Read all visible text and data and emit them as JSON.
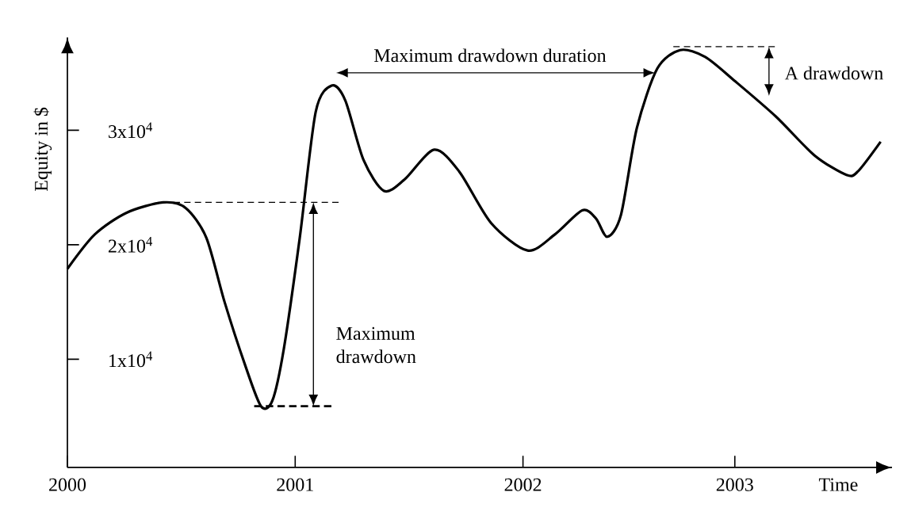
{
  "chart_data": {
    "type": "line",
    "xlabel": "Time",
    "ylabel": "Equity in $",
    "x": [
      2000.0,
      2000.12,
      2000.26,
      2000.42,
      2000.52,
      2000.61,
      2000.69,
      2000.78,
      2000.85,
      2000.9,
      2000.95,
      2001.02,
      2001.09,
      2001.16,
      2001.22,
      2001.3,
      2001.39,
      2001.48,
      2001.61,
      2001.72,
      2001.86,
      2002.02,
      2002.14,
      2002.26,
      2002.32,
      2002.37,
      2002.43,
      2002.5,
      2002.59,
      2002.69,
      2002.8,
      2002.93,
      2003.11,
      2003.28,
      2003.42,
      2003.47,
      2003.57
    ],
    "series": [
      {
        "color": "#000000",
        "values": [
          17900,
          20900,
          22800,
          23700,
          23200,
          20600,
          15000,
          9500,
          5900,
          6400,
          10900,
          20600,
          31600,
          33900,
          32600,
          27400,
          24700,
          25700,
          28300,
          26400,
          21900,
          19500,
          20900,
          23000,
          22300,
          20700,
          22600,
          30200,
          35400,
          37000,
          36400,
          34300,
          31200,
          27800,
          26100,
          26400,
          29000
        ]
      }
    ],
    "xlim": [
      2000,
      2003.62
    ],
    "ylim": [
      550,
      38100
    ],
    "xticks": [
      2000,
      2001,
      2002,
      {
        "value": 2002.93,
        "label": "2003"
      }
    ],
    "yticks": [
      {
        "value": 10000,
        "label": "1x10$^{4}$"
      },
      {
        "value": 20000,
        "label": "2x10$^{4}$"
      },
      {
        "value": 30000,
        "label": "3x10$^{4}$"
      }
    ],
    "annotations": [
      "Maximum drawdown",
      "Maximum drawdown duration",
      "A drawdown"
    ]
  }
}
